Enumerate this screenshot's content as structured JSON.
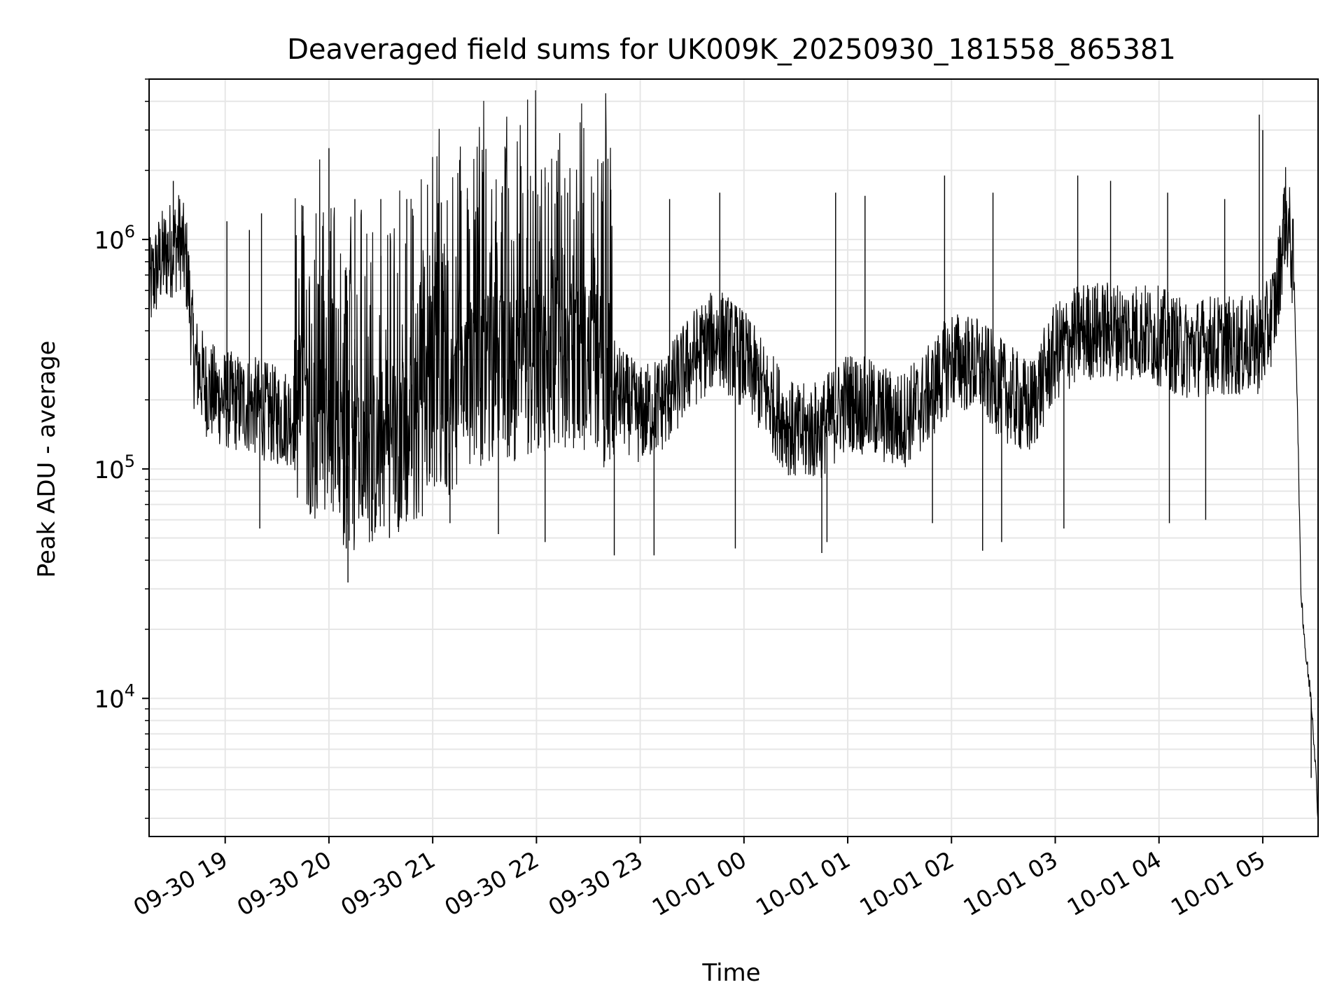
{
  "chart_data": {
    "type": "line",
    "title": "Deaveraged field sums for UK009K_20250930_181558_865381",
    "xlabel": "Time",
    "ylabel": "Peak ADU - average",
    "yscale": "log",
    "grid": true,
    "line_color": "#000000",
    "grid_color": "#e6e6e6",
    "xlim": [
      "2025-09-30 18:16",
      "2025-10-01 05:32"
    ],
    "ylim": [
      2500,
      5000000
    ],
    "x_ticks": [
      {
        "t": "2025-09-30 19:00",
        "label": "09-30 19"
      },
      {
        "t": "2025-09-30 20:00",
        "label": "09-30 20"
      },
      {
        "t": "2025-09-30 21:00",
        "label": "09-30 21"
      },
      {
        "t": "2025-09-30 22:00",
        "label": "09-30 22"
      },
      {
        "t": "2025-09-30 23:00",
        "label": "09-30 23"
      },
      {
        "t": "2025-10-01 00:00",
        "label": "10-01 00"
      },
      {
        "t": "2025-10-01 01:00",
        "label": "10-01 01"
      },
      {
        "t": "2025-10-01 02:00",
        "label": "10-01 02"
      },
      {
        "t": "2025-10-01 03:00",
        "label": "10-01 03"
      },
      {
        "t": "2025-10-01 04:00",
        "label": "10-01 04"
      },
      {
        "t": "2025-10-01 05:00",
        "label": "10-01 05"
      }
    ],
    "y_ticks": [
      {
        "value": 10000,
        "base": "10",
        "exp": "4"
      },
      {
        "value": 100000,
        "base": "10",
        "exp": "5"
      },
      {
        "value": 1000000,
        "base": "10",
        "exp": "6"
      }
    ],
    "series": [
      {
        "name": "",
        "points": [
          [
            "2025-09-30 18:16",
            600000
          ],
          [
            "2025-09-30 18:22",
            800000
          ],
          [
            "2025-09-30 18:28",
            900000
          ],
          [
            "2025-09-30 18:34",
            1000000
          ],
          [
            "2025-09-30 18:38",
            750000
          ],
          [
            "2025-09-30 18:42",
            300000
          ],
          [
            "2025-09-30 18:50",
            220000
          ],
          [
            "2025-09-30 19:00",
            200000
          ],
          [
            "2025-09-30 19:15",
            190000
          ],
          [
            "2025-09-30 19:30",
            170000
          ],
          [
            "2025-09-30 19:45",
            170000
          ],
          [
            "2025-09-30 20:00",
            110000
          ],
          [
            "2025-09-30 20:15",
            100000
          ],
          [
            "2025-09-30 20:30",
            120000
          ],
          [
            "2025-09-30 20:45",
            130000
          ],
          [
            "2025-09-30 21:00",
            160000
          ],
          [
            "2025-09-30 21:15",
            200000
          ],
          [
            "2025-09-30 21:30",
            250000
          ],
          [
            "2025-09-30 21:45",
            250000
          ],
          [
            "2025-09-30 22:00",
            280000
          ],
          [
            "2025-09-30 22:15",
            300000
          ],
          [
            "2025-09-30 22:30",
            280000
          ],
          [
            "2025-09-30 22:45",
            220000
          ],
          [
            "2025-09-30 23:00",
            170000
          ],
          [
            "2025-09-30 23:15",
            200000
          ],
          [
            "2025-09-30 23:30",
            300000
          ],
          [
            "2025-09-30 23:45",
            380000
          ],
          [
            "2025-10-01 00:00",
            300000
          ],
          [
            "2025-10-01 00:15",
            200000
          ],
          [
            "2025-10-01 00:30",
            140000
          ],
          [
            "2025-10-01 00:45",
            150000
          ],
          [
            "2025-10-01 01:00",
            200000
          ],
          [
            "2025-10-01 01:15",
            180000
          ],
          [
            "2025-10-01 01:30",
            160000
          ],
          [
            "2025-10-01 01:45",
            200000
          ],
          [
            "2025-10-01 02:00",
            300000
          ],
          [
            "2025-10-01 02:15",
            280000
          ],
          [
            "2025-10-01 02:30",
            220000
          ],
          [
            "2025-10-01 02:45",
            180000
          ],
          [
            "2025-10-01 03:00",
            320000
          ],
          [
            "2025-10-01 03:15",
            400000
          ],
          [
            "2025-10-01 03:30",
            400000
          ],
          [
            "2025-10-01 03:45",
            400000
          ],
          [
            "2025-10-01 04:00",
            380000
          ],
          [
            "2025-10-01 04:15",
            330000
          ],
          [
            "2025-10-01 04:30",
            350000
          ],
          [
            "2025-10-01 04:45",
            340000
          ],
          [
            "2025-10-01 05:00",
            350000
          ],
          [
            "2025-10-01 05:08",
            550000
          ],
          [
            "2025-10-01 05:13",
            1300000
          ],
          [
            "2025-10-01 05:16",
            1000000
          ],
          [
            "2025-10-01 05:18",
            700000
          ],
          [
            "2025-10-01 05:20",
            200000
          ],
          [
            "2025-10-01 05:22",
            30000
          ],
          [
            "2025-10-01 05:25",
            15000
          ],
          [
            "2025-10-01 05:28",
            10000
          ],
          [
            "2025-10-01 05:30",
            6000
          ],
          [
            "2025-10-01 05:32",
            3000
          ]
        ],
        "spikes_up": [
          [
            "2025-09-30 18:30",
            1800000
          ],
          [
            "2025-09-30 19:01",
            1200000
          ],
          [
            "2025-09-30 19:14",
            1100000
          ],
          [
            "2025-09-30 19:21",
            1300000
          ],
          [
            "2025-09-30 19:45",
            1400000
          ],
          [
            "2025-09-30 20:00",
            2500000
          ],
          [
            "2025-09-30 20:15",
            1500000
          ],
          [
            "2025-09-30 20:30",
            1500000
          ],
          [
            "2025-09-30 20:45",
            1500000
          ],
          [
            "2025-09-30 21:05",
            1450000
          ],
          [
            "2025-09-30 21:20",
            1500000
          ],
          [
            "2025-09-30 21:40",
            1600000
          ],
          [
            "2025-09-30 21:55",
            1650000
          ],
          [
            "2025-09-30 22:05",
            1700000
          ],
          [
            "2025-09-30 22:18",
            1600000
          ],
          [
            "2025-09-30 22:33",
            1600000
          ],
          [
            "2025-09-30 22:43",
            1650000
          ],
          [
            "2025-09-30 23:17",
            1500000
          ],
          [
            "2025-09-30 23:46",
            1600000
          ],
          [
            "2025-10-01 00:53",
            1600000
          ],
          [
            "2025-10-01 01:10",
            1550000
          ],
          [
            "2025-10-01 01:56",
            1900000
          ],
          [
            "2025-10-01 02:24",
            1600000
          ],
          [
            "2025-10-01 03:13",
            1900000
          ],
          [
            "2025-10-01 03:32",
            1800000
          ],
          [
            "2025-10-01 04:05",
            1600000
          ],
          [
            "2025-10-01 04:38",
            1500000
          ],
          [
            "2025-10-01 04:58",
            3500000
          ],
          [
            "2025-10-01 05:00",
            3000000
          ],
          [
            "2025-10-01 05:13",
            1700000
          ]
        ],
        "spikes_down": [
          [
            "2025-09-30 19:20",
            55000
          ],
          [
            "2025-09-30 20:10",
            45000
          ],
          [
            "2025-09-30 20:11",
            32000
          ],
          [
            "2025-09-30 20:35",
            50000
          ],
          [
            "2025-09-30 21:10",
            58000
          ],
          [
            "2025-09-30 21:38",
            52000
          ],
          [
            "2025-09-30 22:05",
            48000
          ],
          [
            "2025-09-30 22:45",
            42000
          ],
          [
            "2025-09-30 23:08",
            42000
          ],
          [
            "2025-09-30 23:55",
            45000
          ],
          [
            "2025-10-01 00:45",
            43000
          ],
          [
            "2025-10-01 00:48",
            48000
          ],
          [
            "2025-10-01 01:49",
            58000
          ],
          [
            "2025-10-01 02:18",
            44000
          ],
          [
            "2025-10-01 02:29",
            48000
          ],
          [
            "2025-10-01 03:05",
            55000
          ],
          [
            "2025-10-01 04:06",
            58000
          ],
          [
            "2025-10-01 04:27",
            60000
          ],
          [
            "2025-10-01 05:28",
            4500
          ]
        ]
      }
    ]
  }
}
